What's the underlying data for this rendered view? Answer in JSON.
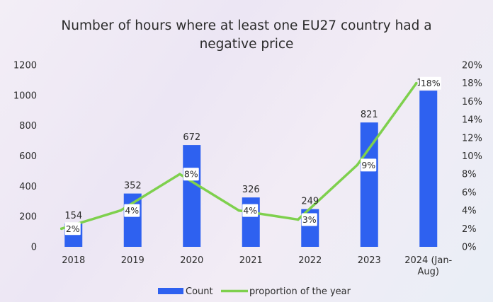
{
  "chart_data": {
    "type": "bar",
    "title_lines": [
      "Number of hours where at least one EU27 country had a",
      "negative price"
    ],
    "categories": [
      "2018",
      "2019",
      "2020",
      "2021",
      "2022",
      "2023",
      "2024 (Jan-Aug)"
    ],
    "category_label_lines": [
      [
        "2018"
      ],
      [
        "2019"
      ],
      [
        "2020"
      ],
      [
        "2021"
      ],
      [
        "2022"
      ],
      [
        "2023"
      ],
      [
        "2024 (Jan-",
        "Aug)"
      ]
    ],
    "series": [
      {
        "name": "Count",
        "type": "bar",
        "axis": "left",
        "values": [
          154,
          352,
          672,
          326,
          249,
          821,
          1031
        ],
        "labels": [
          "154",
          "352",
          "672",
          "326",
          "249",
          "821",
          "1031"
        ]
      },
      {
        "name": "proportion of the year",
        "type": "line",
        "axis": "right",
        "values": [
          2,
          4,
          8,
          4,
          3,
          9,
          18
        ],
        "labels": [
          "2%",
          "4%",
          "8%",
          "4%",
          "3%",
          "9%",
          "18%"
        ]
      }
    ],
    "y_left": {
      "min": 0,
      "max": 1200,
      "ticks": [
        "0",
        "200",
        "400",
        "600",
        "800",
        "1000",
        "1200"
      ]
    },
    "y_right": {
      "min": 0,
      "max": 20,
      "ticks": [
        "0%",
        "2%",
        "4%",
        "6%",
        "8%",
        "10%",
        "12%",
        "14%",
        "16%",
        "18%",
        "20%"
      ]
    },
    "colors": {
      "bar": "#2e61f0",
      "line": "#7ed04d",
      "text": "#2b2b2b"
    },
    "legend_position": "bottom",
    "grid": false
  }
}
